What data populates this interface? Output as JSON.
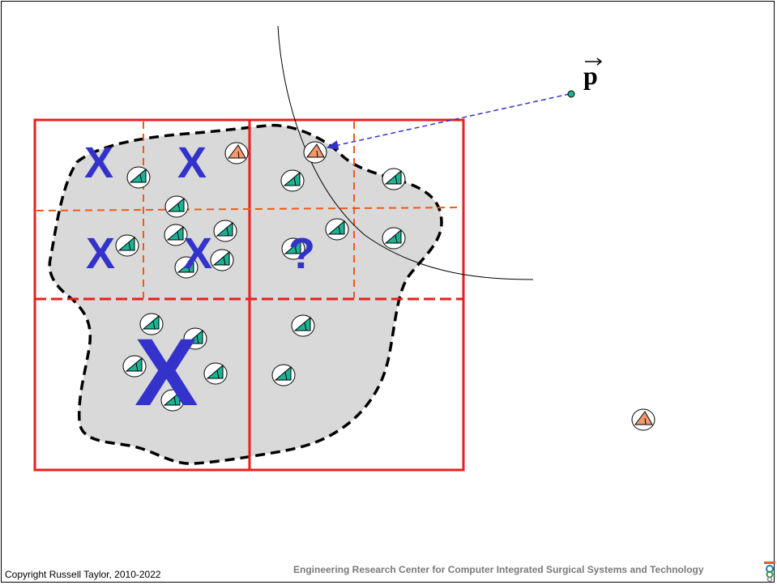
{
  "diagram": {
    "point_label": "p",
    "cell_marks": [
      "X",
      "X",
      "X",
      "X",
      "X"
    ],
    "unknown_mark": "?",
    "colors": {
      "region_fill": "#d9d9d9",
      "grid_red": "#e8201c",
      "grid_orange": "#f05a14",
      "mark_blue": "#3333cc",
      "triangle_green": "#1bb394",
      "triangle_orange": "#f4996a",
      "arrow_blue": "#3333cc",
      "point_teal": "#1bb394"
    }
  },
  "footer": {
    "copyright": "Copyright Russell Taylor, 2010-2022",
    "center": "Engineering Research Center for Computer Integrated Surgical Systems and Technology"
  }
}
